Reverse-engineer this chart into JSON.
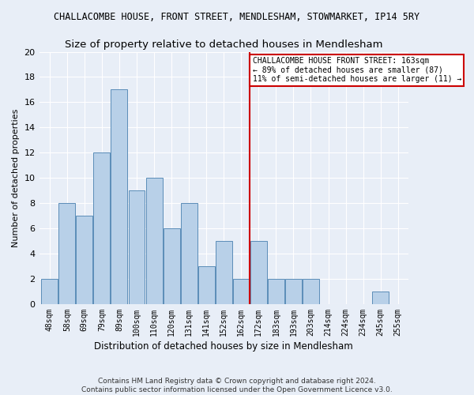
{
  "title": "CHALLACOMBE HOUSE, FRONT STREET, MENDLESHAM, STOWMARKET, IP14 5RY",
  "subtitle": "Size of property relative to detached houses in Mendlesham",
  "xlabel": "Distribution of detached houses by size in Mendlesham",
  "ylabel": "Number of detached properties",
  "categories": [
    "48sqm",
    "58sqm",
    "69sqm",
    "79sqm",
    "89sqm",
    "100sqm",
    "110sqm",
    "120sqm",
    "131sqm",
    "141sqm",
    "152sqm",
    "162sqm",
    "172sqm",
    "183sqm",
    "193sqm",
    "203sqm",
    "214sqm",
    "224sqm",
    "234sqm",
    "245sqm",
    "255sqm"
  ],
  "values": [
    2,
    8,
    7,
    12,
    17,
    9,
    10,
    6,
    8,
    3,
    5,
    2,
    5,
    2,
    2,
    2,
    0,
    0,
    0,
    1,
    0
  ],
  "bar_color": "#b8d0e8",
  "bar_edge_color": "#5b8db8",
  "highlight_index": 11,
  "annotation_line1": "CHALLACOMBE HOUSE FRONT STREET: 163sqm",
  "annotation_line2": "← 89% of detached houses are smaller (87)",
  "annotation_line3": "11% of semi-detached houses are larger (11) →",
  "annotation_box_color": "#ffffff",
  "annotation_box_edge": "#cc0000",
  "red_line_color": "#cc0000",
  "ylim": [
    0,
    20
  ],
  "yticks": [
    0,
    2,
    4,
    6,
    8,
    10,
    12,
    14,
    16,
    18,
    20
  ],
  "footer_line1": "Contains HM Land Registry data © Crown copyright and database right 2024.",
  "footer_line2": "Contains public sector information licensed under the Open Government Licence v3.0.",
  "background_color": "#e8eef7",
  "grid_color": "#ffffff",
  "title_fontsize": 8.5,
  "subtitle_fontsize": 9.5,
  "ylabel_fontsize": 8,
  "xlabel_fontsize": 8.5,
  "tick_fontsize": 7,
  "footer_fontsize": 6.5,
  "annot_fontsize": 7
}
